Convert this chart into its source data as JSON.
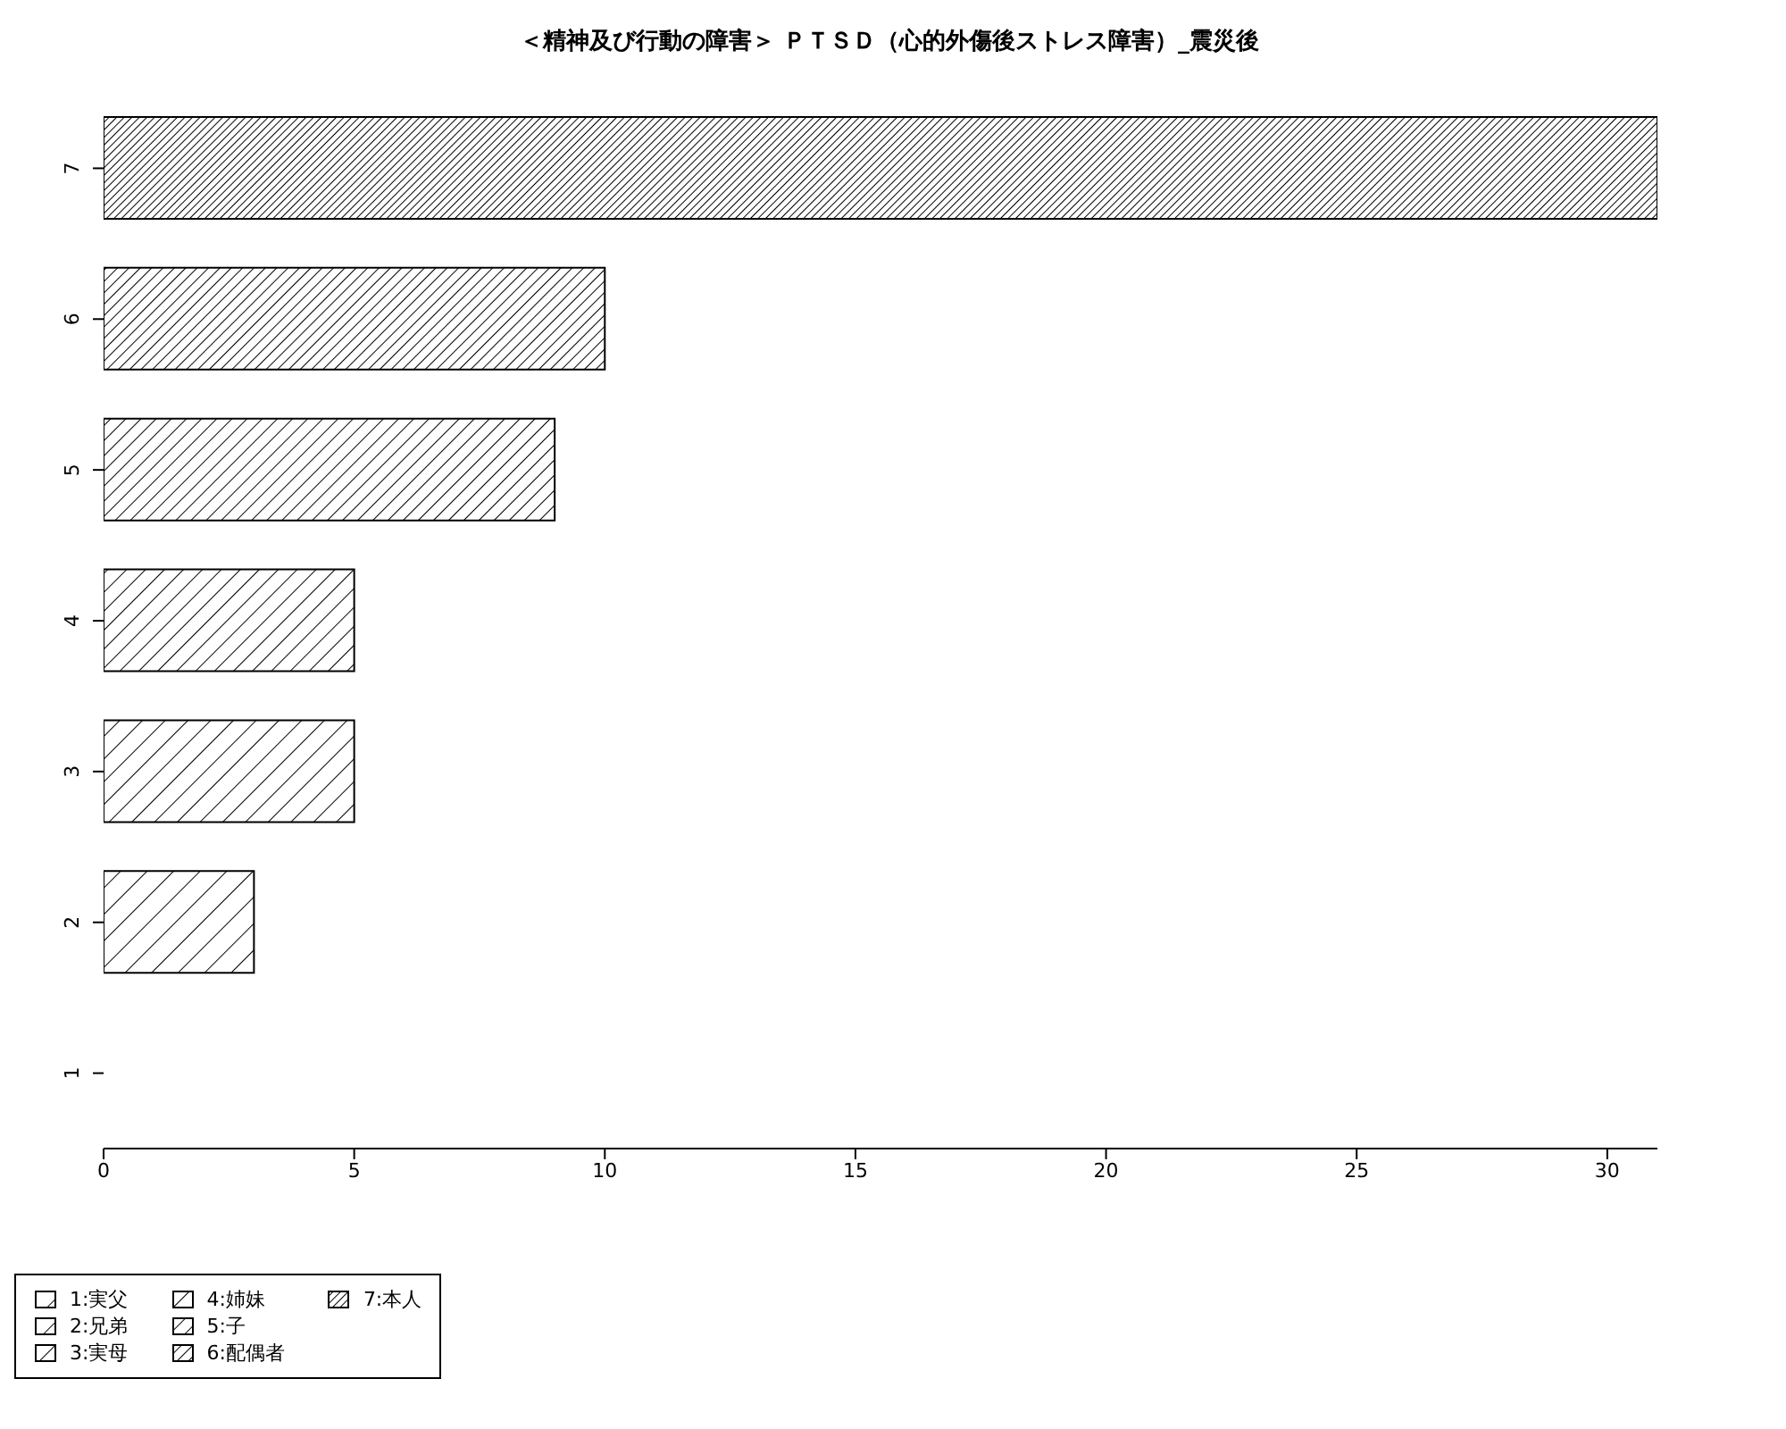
{
  "chart_data": {
    "type": "bar",
    "title": "＜精神及び行動の障害＞ ＰＴＳＤ（心的外傷後ストレス障害）_震災後",
    "orientation": "horizontal",
    "stacked": true,
    "categories": [
      "7",
      "6",
      "5",
      "4",
      "3",
      "2",
      "1"
    ],
    "series": [
      {
        "name": "1:実父",
        "color": "#000000",
        "values": [
          null,
          null,
          null,
          null,
          null,
          null,
          0
        ]
      },
      {
        "name": "2:兄弟",
        "color": "#000000",
        "values": [
          null,
          null,
          null,
          null,
          null,
          3,
          null
        ]
      },
      {
        "name": "3:実母",
        "color": "#000000",
        "values": [
          null,
          null,
          null,
          null,
          5,
          null,
          null
        ]
      },
      {
        "name": "4:姉妹",
        "color": "#000000",
        "values": [
          null,
          null,
          null,
          5,
          null,
          null,
          null
        ]
      },
      {
        "name": "5:子",
        "color": "#000000",
        "values": [
          null,
          null,
          9,
          null,
          null,
          null,
          null
        ]
      },
      {
        "name": "6:配偶者",
        "color": "#000000",
        "values": [
          null,
          10,
          null,
          null,
          null,
          null,
          null
        ]
      },
      {
        "name": "7:本人",
        "color": "#000000",
        "values": [
          31,
          null,
          null,
          null,
          null,
          null,
          null
        ]
      }
    ],
    "xlim": [
      0,
      31
    ],
    "xticks": [
      0,
      5,
      10,
      15,
      20,
      25,
      30
    ],
    "legend": "bottom left"
  }
}
